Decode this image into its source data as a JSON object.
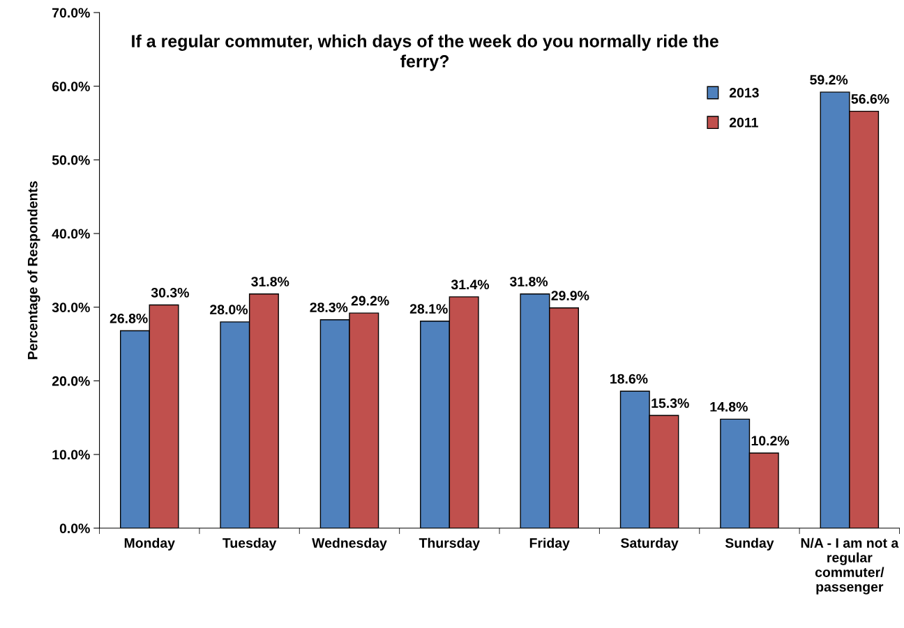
{
  "chart_data": {
    "type": "bar",
    "title": "If a regular commuter, which days of the week do you normally ride the ferry?",
    "ylabel": "Percentage of Respondents",
    "categories": [
      "Monday",
      "Tuesday",
      "Wednesday",
      "Thursday",
      "Friday",
      "Saturday",
      "Sunday",
      "N/A - I am not a regular commuter/ passenger"
    ],
    "series": [
      {
        "name": "2013",
        "color": "#4f81bd",
        "values": [
          26.8,
          28.0,
          28.3,
          28.1,
          31.8,
          18.6,
          14.8,
          59.2
        ],
        "value_labels": [
          "26.8%",
          "28.0%",
          "28.3%",
          "28.1%",
          "31.8%",
          "18.6%",
          "14.8%",
          "59.2%"
        ]
      },
      {
        "name": "2011",
        "color": "#c0504d",
        "values": [
          30.3,
          31.8,
          29.2,
          31.4,
          29.9,
          15.3,
          10.2,
          56.6
        ],
        "value_labels": [
          "30.3%",
          "31.8%",
          "29.2%",
          "31.4%",
          "29.9%",
          "15.3%",
          "10.2%",
          "56.6%"
        ]
      }
    ],
    "ylim": [
      0,
      70
    ],
    "yticks": [
      {
        "value": 0,
        "label": "0.0%"
      },
      {
        "value": 10,
        "label": "10.0%"
      },
      {
        "value": 20,
        "label": "20.0%"
      },
      {
        "value": 30,
        "label": "30.0%"
      },
      {
        "value": 40,
        "label": "40.0%"
      },
      {
        "value": 50,
        "label": "50.0%"
      },
      {
        "value": 60,
        "label": "60.0%"
      },
      {
        "value": 70,
        "label": "70.0%"
      }
    ],
    "grid": false,
    "legend": "top right"
  }
}
